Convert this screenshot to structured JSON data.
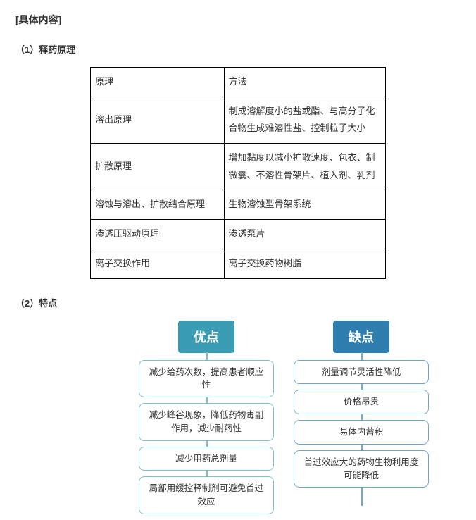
{
  "title": "[具体内容]",
  "section1": {
    "heading": "（1）释药原理",
    "table": {
      "header": {
        "c1": "原理",
        "c2": "方法"
      },
      "rows": [
        {
          "c1": "溶出原理",
          "c2": "制成溶解度小的盐或酯、与高分子化合物生成难溶性盐、控制粒子大小"
        },
        {
          "c1": "扩散原理",
          "c2": "增加黏度以减小扩散速度、包衣、制微囊、不溶性骨架片、植入剂、乳剂"
        },
        {
          "c1": "溶蚀与溶出、扩散结合原理",
          "c2": "生物溶蚀型骨架系统"
        },
        {
          "c1": "渗透压驱动原理",
          "c2": "渗透泵片"
        },
        {
          "c1": "离子交换作用",
          "c2": "离子交换药物树脂"
        }
      ]
    }
  },
  "section2": {
    "heading": "（2）特点",
    "columns": [
      {
        "title": "优点",
        "header_bg": "#3b9db3",
        "border_color": "#7dbecb",
        "items": [
          "减少给药次数，提高患者顺应性",
          "减少峰谷现象，降低药物毒副作用，减少耐药性",
          "减少用药总剂量",
          "局部用缓控释制剂可避免首过效应"
        ]
      },
      {
        "title": "缺点",
        "header_bg": "#2e7fb0",
        "border_color": "#6fa9cb",
        "items": [
          "剂量调节灵活性降低",
          "价格昂贵",
          "易体内蓄积",
          "首过效应大的药物生物利用度可能降低"
        ]
      }
    ]
  },
  "colors": {
    "text": "#333333",
    "table_border": "#000000",
    "background": "#ffffff"
  }
}
